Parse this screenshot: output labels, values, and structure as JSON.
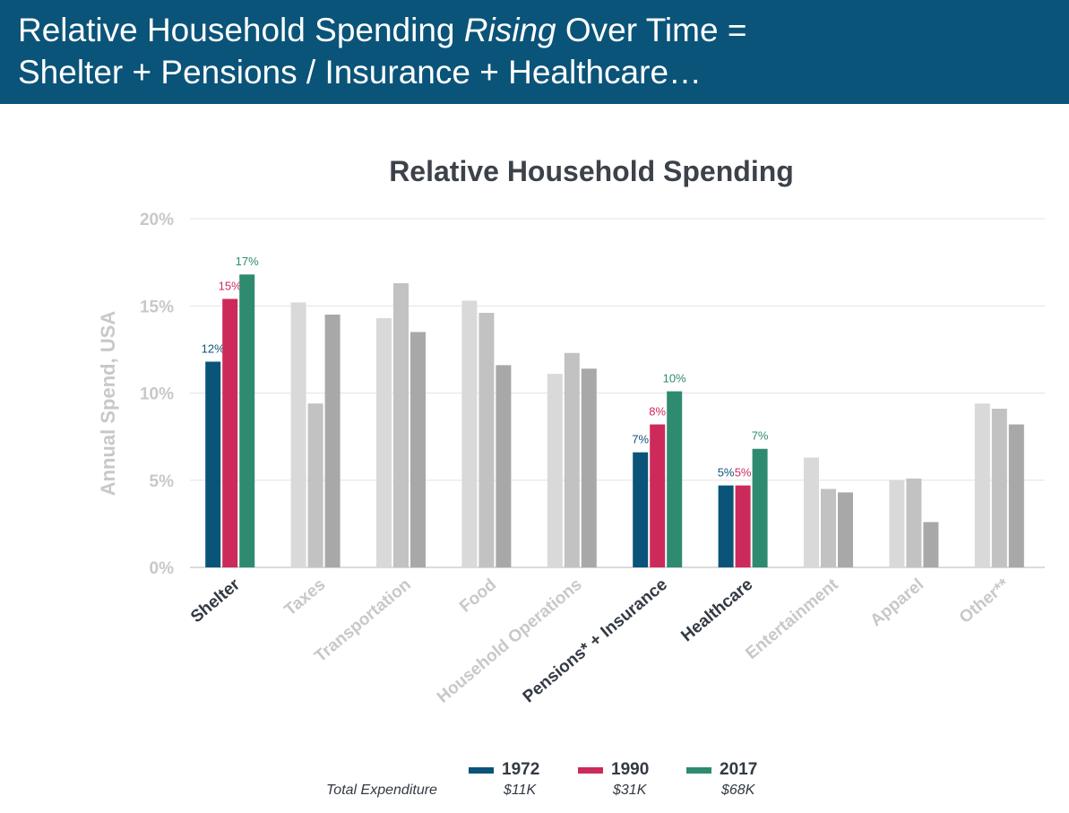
{
  "banner": {
    "line1_prefix": "Relative Household Spending ",
    "line1_em": "Rising",
    "line1_suffix": " Over Time =",
    "line2": "Shelter + Pensions / Insurance + Healthcare…"
  },
  "colors": {
    "banner_bg": "#0b5479",
    "s1972": "#0b5479",
    "s1990": "#cc2a5a",
    "s2017": "#2e8b70",
    "muted1": "#d9d9d9",
    "muted2": "#c2c2c2",
    "muted3": "#a8a8a8",
    "highlight_text": "#333a43",
    "muted_text": "#c8c8c8"
  },
  "chart_data": {
    "type": "bar",
    "title": "Relative Household Spending",
    "ylabel": "Annual Spend, USA",
    "xlabel": "",
    "ylim": [
      0,
      20
    ],
    "yticks": [
      0,
      5,
      10,
      15,
      20
    ],
    "ytick_labels": [
      "0%",
      "5%",
      "10%",
      "15%",
      "20%"
    ],
    "grid": true,
    "legend_position": "bottom",
    "categories": [
      "Shelter",
      "Taxes",
      "Transportation",
      "Food",
      "Household Operations",
      "Pensions* + Insurance",
      "Healthcare",
      "Entertainment",
      "Apparel",
      "Other**"
    ],
    "highlighted": [
      true,
      false,
      false,
      false,
      false,
      true,
      true,
      false,
      false,
      false
    ],
    "series": [
      {
        "name": "1972",
        "total_expenditure": "$11K",
        "values": [
          11.8,
          15.2,
          14.3,
          15.3,
          11.1,
          6.6,
          4.7,
          6.3,
          5.0,
          9.4
        ],
        "data_labels": [
          "12%",
          "",
          "",
          "",
          "",
          "7%",
          "5%",
          "",
          "",
          ""
        ]
      },
      {
        "name": "1990",
        "total_expenditure": "$31K",
        "values": [
          15.4,
          9.4,
          16.3,
          14.6,
          12.3,
          8.2,
          4.7,
          4.5,
          5.1,
          9.1
        ],
        "data_labels": [
          "15%",
          "",
          "",
          "",
          "",
          "8%",
          "5%",
          "",
          "",
          ""
        ]
      },
      {
        "name": "2017",
        "total_expenditure": "$68K",
        "values": [
          16.8,
          14.5,
          13.5,
          11.6,
          11.4,
          10.1,
          6.8,
          4.3,
          2.6,
          8.2
        ],
        "data_labels": [
          "17%",
          "",
          "",
          "",
          "",
          "10%",
          "7%",
          "",
          "",
          ""
        ]
      }
    ]
  },
  "legend": {
    "total_label": "Total Expenditure"
  }
}
